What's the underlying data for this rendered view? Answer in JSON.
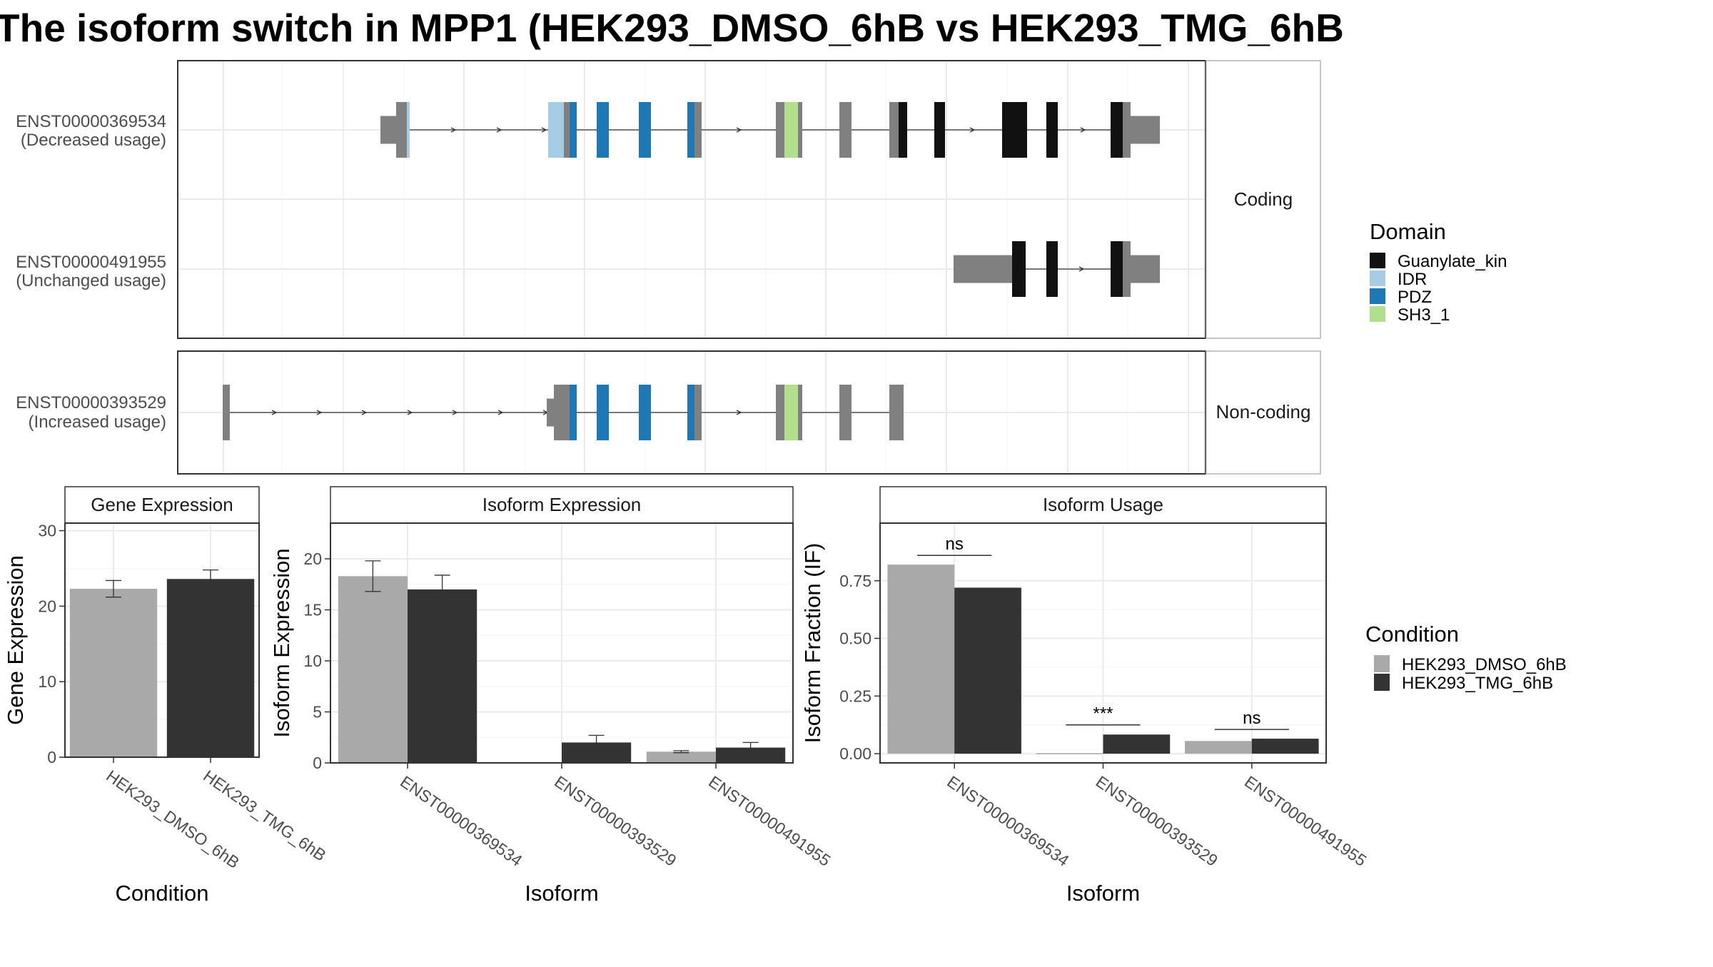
{
  "title": "The isoform switch in MPP1 (HEK293_DMSO_6hB vs HEK293_TMG_6hB",
  "colors": {
    "exon_no_domain": "#808080",
    "Guanylate_kin": "#111111",
    "IDR": "#a6cde3",
    "PDZ": "#1f78b4",
    "SH3_1": "#b1df8b",
    "HEK293_DMSO_6hB": "#a9a9a9",
    "HEK293_TMG_6hB": "#333333",
    "panel_border": "#333333",
    "grid": "#ebebeb"
  },
  "transcripts": {
    "coding_strip": "Coding",
    "noncoding_strip": "Non-coding",
    "items": [
      {
        "id": "ENST00000369534",
        "usage": "(Decreased usage)",
        "group": "coding",
        "row": 0
      },
      {
        "id": "ENST00000491955",
        "usage": "(Unchanged usage)",
        "group": "coding",
        "row": 1
      },
      {
        "id": "ENST00000393529",
        "usage": "(Increased usage)",
        "group": "noncoding",
        "row": 0
      }
    ]
  },
  "domain_legend": {
    "title": "Domain",
    "items": [
      "Guanylate_kin",
      "IDR",
      "PDZ",
      "SH3_1"
    ]
  },
  "condition_legend": {
    "title": "Condition",
    "items": [
      "HEK293_DMSO_6hB",
      "HEK293_TMG_6hB"
    ]
  },
  "chart_data": [
    {
      "type": "bar",
      "title": "Gene Expression",
      "xlabel": "Condition",
      "ylabel": "Gene Expression",
      "categories": [
        "HEK293_DMSO_6hB",
        "HEK293_TMG_6hB"
      ],
      "values": [
        22.3,
        23.6
      ],
      "errors": [
        1.1,
        1.2
      ],
      "ylim": [
        0,
        31
      ],
      "yticks": [
        0,
        10,
        20,
        30
      ],
      "grid": true
    },
    {
      "type": "bar",
      "title": "Isoform Expression",
      "xlabel": "Isoform",
      "ylabel": "Isoform Expression",
      "categories": [
        "ENST00000369534",
        "ENST00000393529",
        "ENST00000491955"
      ],
      "series": [
        {
          "name": "HEK293_DMSO_6hB",
          "values": [
            18.3,
            0.0,
            1.1
          ],
          "errors": [
            1.5,
            0.0,
            0.1
          ]
        },
        {
          "name": "HEK293_TMG_6hB",
          "values": [
            17.0,
            2.0,
            1.5
          ],
          "errors": [
            1.4,
            0.7,
            0.5
          ]
        }
      ],
      "ylim": [
        0,
        23.5
      ],
      "yticks": [
        0,
        5,
        10,
        15,
        20
      ],
      "grid": true
    },
    {
      "type": "bar",
      "title": "Isoform Usage",
      "xlabel": "Isoform",
      "ylabel": "Isoform Fraction (IF)",
      "categories": [
        "ENST00000369534",
        "ENST00000393529",
        "ENST00000491955"
      ],
      "series": [
        {
          "name": "HEK293_DMSO_6hB",
          "values": [
            0.82,
            0.0,
            0.055
          ]
        },
        {
          "name": "HEK293_TMG_6hB",
          "values": [
            0.72,
            0.083,
            0.065
          ]
        }
      ],
      "significance": [
        "ns",
        "***",
        "ns"
      ],
      "significance_y": [
        0.86,
        0.125,
        0.105
      ],
      "ylim": [
        -0.04,
        1.0
      ],
      "yticks": [
        0.0,
        0.25,
        0.5,
        0.75
      ],
      "ytick_labels": [
        "0.00",
        "0.25",
        "0.50",
        "0.75"
      ],
      "grid": true
    }
  ]
}
